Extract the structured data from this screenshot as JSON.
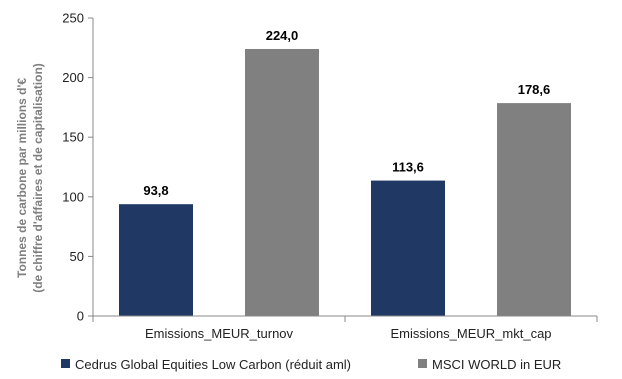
{
  "chart_data": {
    "type": "bar",
    "categories": [
      "Emissions_MEUR_turnov",
      "Emissions_MEUR_mkt_cap"
    ],
    "series": [
      {
        "name": "Cedrus Global Equities Low Carbon (réduit aml)",
        "values": [
          93.8,
          113.6
        ],
        "labels": [
          "93,8",
          "113,6"
        ],
        "color": "#1f3864"
      },
      {
        "name": "MSCI WORLD in EUR",
        "values": [
          224.0,
          178.6
        ],
        "labels": [
          "224,0",
          "178,6"
        ],
        "color": "#808080"
      }
    ],
    "ylabel_lines": [
      "Tonnes de carbone par millions d'€",
      "(de chiffre d'affaires et de capitalisation)"
    ],
    "ylim": [
      0,
      250
    ],
    "yticks": [
      0,
      50,
      100,
      150,
      200,
      250
    ],
    "grid": false,
    "legend_position": "bottom"
  }
}
